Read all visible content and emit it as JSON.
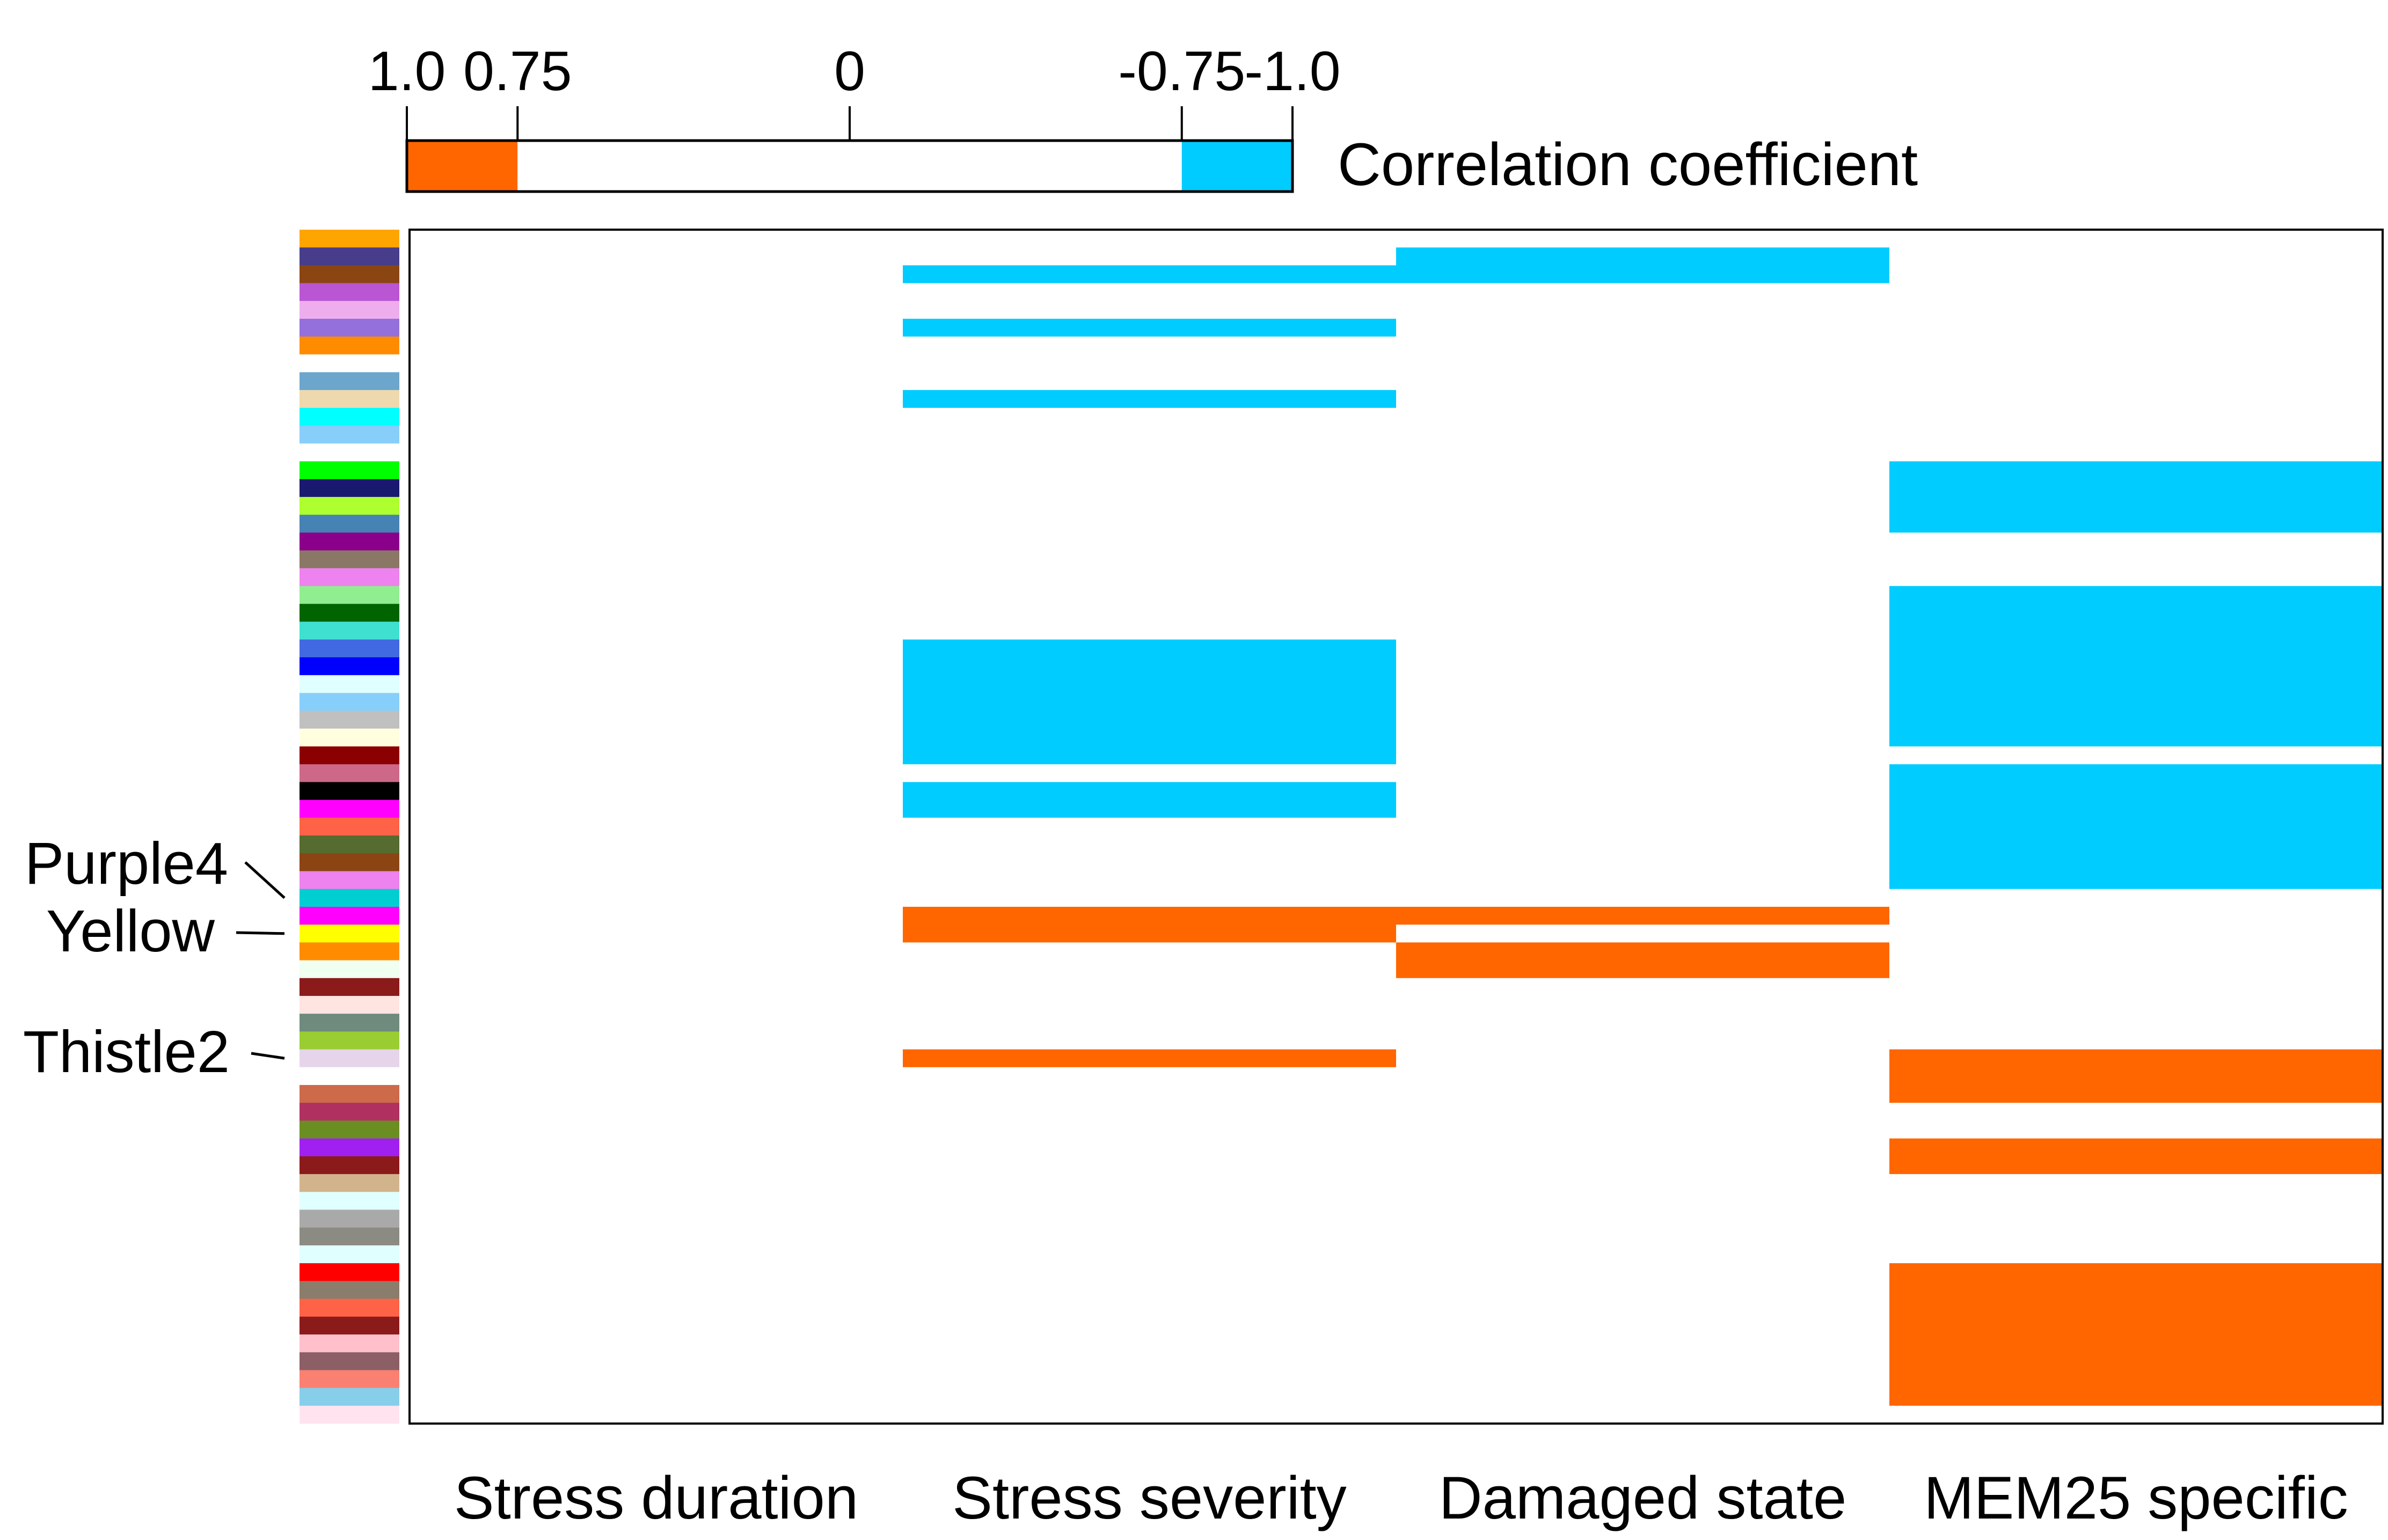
{
  "chart_data": {
    "type": "heatmap",
    "title": "",
    "xlabel": "",
    "ylabel": "",
    "colorbar": {
      "title": "Correlation coefficient",
      "ticks": [
        {
          "label": "1.0",
          "value": 1.0
        },
        {
          "label": "0.75",
          "value": 0.75
        },
        {
          "label": "0",
          "value": 0
        },
        {
          "label": "-0.75",
          "value": -0.75
        },
        {
          "label": "-1.0",
          "value": -1.0
        }
      ],
      "segments": [
        {
          "from": 1.0,
          "to": 0.75,
          "color": "#FF6600"
        },
        {
          "from": 0.75,
          "to": -0.75,
          "color": "#FFFFFF"
        },
        {
          "from": -0.75,
          "to": -1.0,
          "color": "#00CCFF"
        }
      ]
    },
    "categories": [
      "Stress duration",
      "Stress severity",
      "Damaged state",
      "MEM25 specific"
    ],
    "module_count": 67,
    "module_colors": [
      "#FFA500",
      "#483D8B",
      "#8B4513",
      "#BA55D3",
      "#EEAEEE",
      "#9370DB",
      "#FF8C00",
      "#FFFFFF",
      "#6CA6CD",
      "#EED8AE",
      "#00FFFF",
      "#87CEFA",
      "#FFFFFF",
      "#00FF00",
      "#191970",
      "#ADFF2F",
      "#4682B4",
      "#8B008B",
      "#8B7765",
      "#EE82EE",
      "#90EE90",
      "#006400",
      "#40E0D0",
      "#4169E1",
      "#0000FF",
      "#E0FFFF",
      "#87CEFA",
      "#C0C0C0",
      "#FFFFE0",
      "#8B0000",
      "#CD6889",
      "#000000",
      "#FF00FF",
      "#FF6347",
      "#556B2F",
      "#8B4513",
      "#EE82EE",
      "#00CED1",
      "#FF00FF",
      "#FFFF00",
      "#FF8C00",
      "#F0FFF0",
      "#8B1A1A",
      "#FFE4E1",
      "#6E8B7D",
      "#9ACD32",
      "#E6D5EA",
      "#FFFFFF",
      "#CD6A4A",
      "#B03060",
      "#6B8E23",
      "#A020F0",
      "#8B1A1A",
      "#D2B48C",
      "#E0FFFF",
      "#A9A9A9",
      "#8B8B83",
      "#E0FFFF",
      "#FF0000",
      "#8B7D6B",
      "#FF6347",
      "#8B1A1A",
      "#FFC0CB",
      "#8B5F65",
      "#FA8072",
      "#87CEEB",
      "#FFE4F0"
    ],
    "module_labels": [
      {
        "name": "Purple4",
        "row": 37
      },
      {
        "name": "Yellow",
        "row": 39
      },
      {
        "name": "Thistle2",
        "row": 46
      }
    ],
    "cells": [
      {
        "category": 1,
        "row_start": 2,
        "row_end": 2,
        "value": -1.0
      },
      {
        "category": 2,
        "row_start": 1,
        "row_end": 2,
        "value": -1.0
      },
      {
        "category": 1,
        "row_start": 5,
        "row_end": 5,
        "value": -1.0
      },
      {
        "category": 1,
        "row_start": 9,
        "row_end": 9,
        "value": -1.0
      },
      {
        "category": 3,
        "row_start": 13,
        "row_end": 16,
        "value": -1.0
      },
      {
        "category": 3,
        "row_start": 20,
        "row_end": 28,
        "value": -1.0
      },
      {
        "category": 1,
        "row_start": 23,
        "row_end": 29,
        "value": -1.0
      },
      {
        "category": 1,
        "row_start": 31,
        "row_end": 32,
        "value": -1.0
      },
      {
        "category": 3,
        "row_start": 30,
        "row_end": 36,
        "value": -1.0
      },
      {
        "category": 1,
        "row_start": 38,
        "row_end": 39,
        "value": 1.0
      },
      {
        "category": 2,
        "row_start": 38,
        "row_end": 38,
        "value": 1.0
      },
      {
        "category": 2,
        "row_start": 40,
        "row_end": 41,
        "value": 1.0
      },
      {
        "category": 1,
        "row_start": 46,
        "row_end": 46,
        "value": 1.0
      },
      {
        "category": 3,
        "row_start": 46,
        "row_end": 48,
        "value": 1.0
      },
      {
        "category": 3,
        "row_start": 51,
        "row_end": 52,
        "value": 1.0
      },
      {
        "category": 3,
        "row_start": 58,
        "row_end": 65,
        "value": 1.0
      }
    ]
  }
}
